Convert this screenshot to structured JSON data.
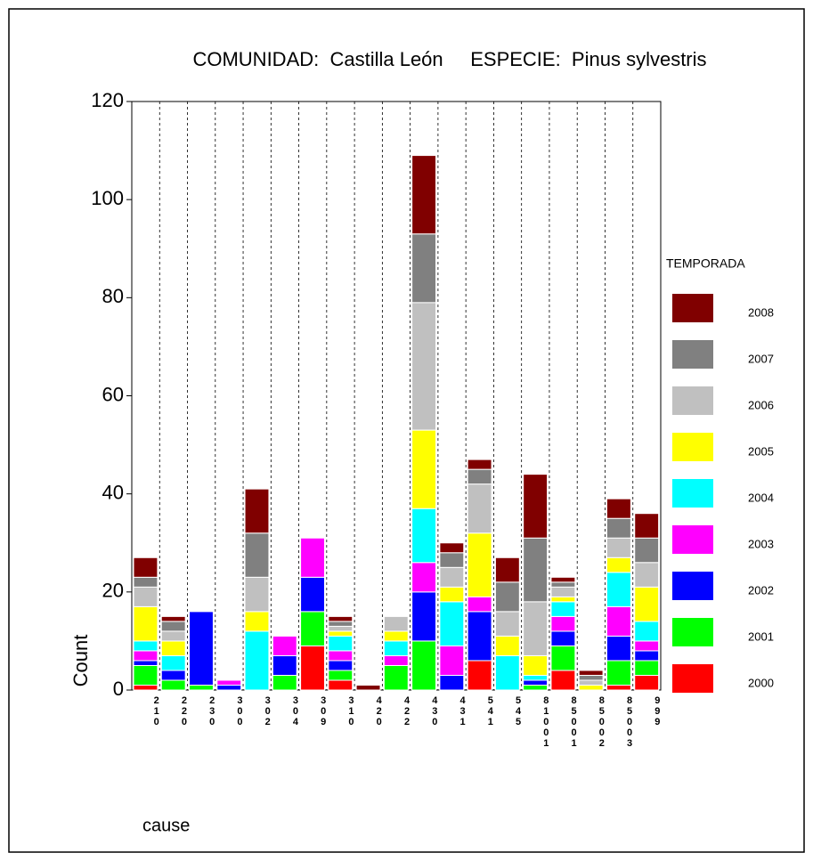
{
  "chart_data": {
    "type": "stacked_bar",
    "title": "COMUNIDAD:  Castilla León     ESPECIE:  Pinus sylvestris",
    "x_label": "cause",
    "y_label": "Count",
    "legend_title": "TEMPORADA",
    "legend": "right",
    "categories": [
      "210",
      "220",
      "230",
      "300",
      "302",
      "304",
      "309",
      "310",
      "420",
      "422",
      "430",
      "431",
      "541",
      "545",
      "81001",
      "85001",
      "85002",
      "85003",
      "999"
    ],
    "ylim": [
      0,
      120
    ],
    "yticks": [
      0,
      20,
      40,
      60,
      80,
      100,
      120
    ],
    "series": [
      {
        "name": "2000",
        "color": "#ff0000",
        "values": [
          1,
          0,
          0,
          0,
          0,
          0,
          9,
          2,
          0,
          0,
          0,
          0,
          6,
          0,
          0,
          4,
          0,
          1,
          3
        ]
      },
      {
        "name": "2001",
        "color": "#00ff00",
        "values": [
          4,
          2,
          1,
          0,
          0,
          3,
          7,
          2,
          0,
          5,
          10,
          0,
          0,
          0,
          1,
          5,
          0,
          5,
          3
        ]
      },
      {
        "name": "2002",
        "color": "#0000ff",
        "values": [
          1,
          2,
          15,
          1,
          0,
          4,
          7,
          2,
          0,
          0,
          10,
          3,
          10,
          0,
          1,
          3,
          0,
          5,
          2
        ]
      },
      {
        "name": "2003",
        "color": "#ff00ff",
        "values": [
          2,
          0,
          0,
          1,
          0,
          4,
          8,
          2,
          0,
          2,
          6,
          6,
          3,
          0,
          0,
          3,
          0,
          6,
          2
        ]
      },
      {
        "name": "2004",
        "color": "#00ffff",
        "values": [
          2,
          3,
          0,
          0,
          12,
          0,
          0,
          3,
          0,
          3,
          11,
          9,
          0,
          7,
          1,
          3,
          0,
          7,
          4
        ]
      },
      {
        "name": "2005",
        "color": "#ffff00",
        "values": [
          7,
          3,
          0,
          0,
          4,
          0,
          0,
          1,
          0,
          2,
          16,
          3,
          13,
          4,
          4,
          1,
          1,
          3,
          7
        ]
      },
      {
        "name": "2006",
        "color": "#c0c0c0",
        "values": [
          4,
          2,
          0,
          0,
          7,
          0,
          0,
          1,
          0,
          3,
          26,
          4,
          10,
          5,
          11,
          2,
          1,
          4,
          5
        ]
      },
      {
        "name": "2007",
        "color": "#808080",
        "values": [
          2,
          2,
          0,
          0,
          9,
          0,
          0,
          1,
          0,
          0,
          14,
          3,
          3,
          6,
          13,
          1,
          1,
          4,
          5
        ]
      },
      {
        "name": "2008",
        "color": "#800000",
        "values": [
          4,
          1,
          0,
          0,
          9,
          0,
          0,
          1,
          1,
          0,
          16,
          2,
          2,
          5,
          13,
          1,
          1,
          4,
          5
        ]
      }
    ]
  }
}
